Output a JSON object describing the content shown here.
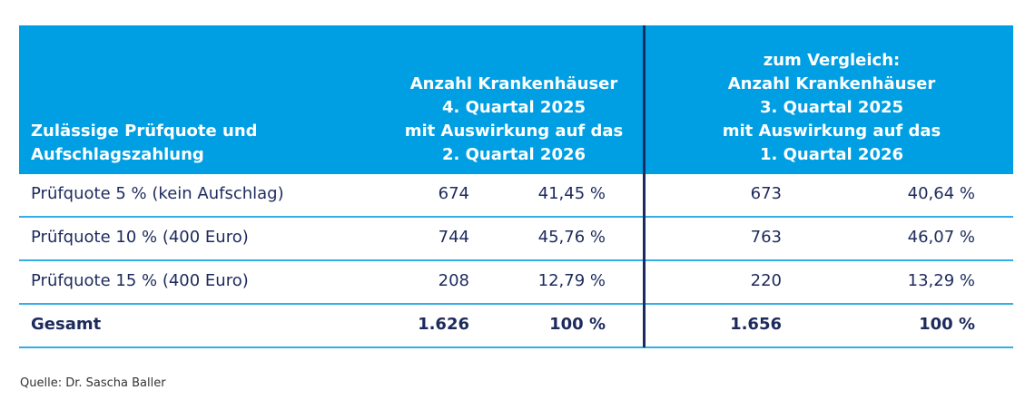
{
  "header": {
    "col0": [
      "Zulässige Prüfquote und",
      "Aufschlagszahlung"
    ],
    "col1": [
      "Anzahl Krankenhäuser",
      "4. Quartal 2025",
      "mit Auswirkung auf das",
      "2. Quartal 2026"
    ],
    "col2": [
      "zum Vergleich:",
      "Anzahl Krankenhäuser",
      "3. Quartal 2025",
      "mit Auswirkung auf das",
      "1. Quartal 2026"
    ]
  },
  "rows": [
    {
      "label": "Prüfquote 5 % (kein Aufschlag)",
      "n1": "674",
      "p1": "41,45 %",
      "n2": "673",
      "p2": "40,64 %"
    },
    {
      "label": "Prüfquote 10 % (400 Euro)",
      "n1": "744",
      "p1": "45,76 %",
      "n2": "763",
      "p2": "46,07 %"
    },
    {
      "label": "Prüfquote 15 % (400 Euro)",
      "n1": "208",
      "p1": "12,79 %",
      "n2": "220",
      "p2": "13,29 %"
    },
    {
      "label": "Gesamt",
      "n1": "1.626",
      "p1": "100 %",
      "n2": "1.656",
      "p2": "100 %"
    }
  ],
  "source": "Quelle: Dr. Sascha Baller",
  "colors": {
    "header_bg": "#009fe3",
    "text": "#1d2a5c",
    "row_line": "#33aee8",
    "divider": "#1a2b5f"
  }
}
